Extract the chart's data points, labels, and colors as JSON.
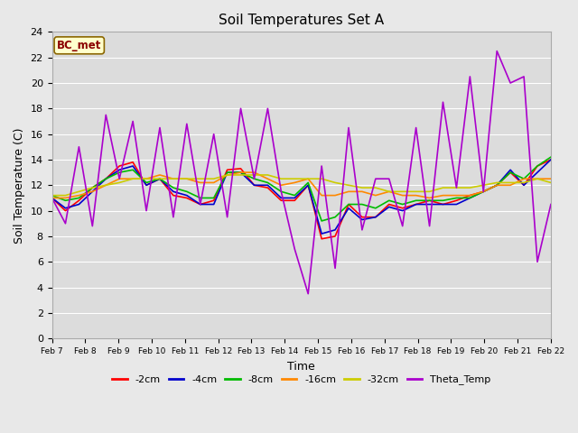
{
  "title": "Soil Temperatures Set A",
  "xlabel": "Time",
  "ylabel": "Soil Temperature (C)",
  "annotation": "BC_met",
  "ylim": [
    0,
    24
  ],
  "yticks": [
    0,
    2,
    4,
    6,
    8,
    10,
    12,
    14,
    16,
    18,
    20,
    22,
    24
  ],
  "x_labels": [
    "Feb 7",
    "Feb 8",
    "Feb 9",
    "Feb 10",
    "Feb 11",
    "Feb 12",
    "Feb 13",
    "Feb 14",
    "Feb 15",
    "Feb 16",
    "Feb 17",
    "Feb 18",
    "Feb 19",
    "Feb 20",
    "Feb 21",
    "Feb 22"
  ],
  "fig_bg": "#e8e8e8",
  "plot_bg": "#dcdcdc",
  "grid_color": "#ffffff",
  "legend_entries": [
    "-2cm",
    "-4cm",
    "-8cm",
    "-16cm",
    "-32cm",
    "Theta_Temp"
  ],
  "legend_colors": [
    "#ff0000",
    "#0000cc",
    "#00bb00",
    "#ff8800",
    "#cccc00",
    "#aa00cc"
  ],
  "series_data": {
    "-2cm": [
      11.0,
      10.0,
      10.8,
      11.8,
      12.5,
      13.5,
      13.8,
      12.0,
      12.5,
      11.2,
      11.0,
      10.5,
      10.8,
      13.2,
      13.3,
      12.0,
      11.8,
      10.8,
      10.8,
      12.0,
      7.8,
      8.0,
      10.5,
      9.5,
      9.5,
      10.5,
      10.2,
      10.5,
      10.8,
      10.5,
      10.8,
      11.2,
      11.5,
      12.0,
      13.0,
      12.0,
      13.5,
      14.0
    ],
    "-4cm": [
      11.0,
      10.2,
      10.5,
      11.5,
      12.5,
      13.2,
      13.5,
      12.0,
      12.5,
      11.5,
      11.2,
      10.5,
      10.5,
      13.0,
      13.0,
      12.0,
      12.0,
      11.0,
      11.0,
      12.0,
      8.2,
      8.5,
      10.2,
      9.3,
      9.5,
      10.3,
      10.0,
      10.5,
      10.5,
      10.5,
      10.5,
      11.0,
      11.5,
      12.0,
      13.2,
      12.0,
      13.0,
      14.0
    ],
    "-8cm": [
      11.2,
      10.8,
      11.0,
      11.8,
      12.5,
      13.0,
      13.2,
      12.2,
      12.5,
      11.8,
      11.5,
      11.0,
      11.0,
      13.0,
      13.0,
      12.5,
      12.2,
      11.5,
      11.2,
      12.2,
      9.2,
      9.5,
      10.5,
      10.5,
      10.2,
      10.8,
      10.5,
      10.8,
      10.8,
      10.8,
      11.0,
      11.0,
      11.5,
      12.0,
      13.0,
      12.5,
      13.5,
      14.2
    ],
    "-16cm": [
      11.0,
      11.0,
      11.2,
      11.5,
      12.0,
      12.5,
      12.5,
      12.5,
      12.8,
      12.5,
      12.5,
      12.2,
      12.2,
      12.8,
      13.0,
      13.0,
      12.5,
      12.0,
      12.2,
      12.5,
      11.2,
      11.2,
      11.5,
      11.5,
      11.2,
      11.5,
      11.2,
      11.2,
      11.0,
      11.2,
      11.2,
      11.2,
      11.5,
      12.0,
      12.0,
      12.5,
      12.5,
      12.5
    ],
    "-32cm": [
      11.2,
      11.2,
      11.5,
      11.8,
      12.0,
      12.2,
      12.5,
      12.5,
      12.5,
      12.5,
      12.5,
      12.5,
      12.5,
      12.8,
      12.8,
      12.8,
      12.8,
      12.5,
      12.5,
      12.5,
      12.5,
      12.2,
      12.0,
      11.8,
      11.8,
      11.5,
      11.5,
      11.5,
      11.5,
      11.8,
      11.8,
      11.8,
      12.0,
      12.2,
      12.2,
      12.2,
      12.5,
      12.2
    ],
    "Theta_Temp": [
      11.0,
      9.0,
      15.0,
      8.8,
      17.5,
      12.5,
      17.0,
      10.0,
      16.5,
      9.5,
      16.8,
      10.5,
      16.0,
      9.5,
      18.0,
      12.5,
      18.0,
      11.5,
      7.0,
      3.5,
      13.5,
      5.5,
      16.5,
      8.5,
      12.5,
      12.5,
      8.8,
      16.5,
      8.8,
      18.5,
      11.8,
      20.5,
      11.5,
      22.5,
      20.0,
      20.5,
      6.0,
      10.5
    ]
  }
}
